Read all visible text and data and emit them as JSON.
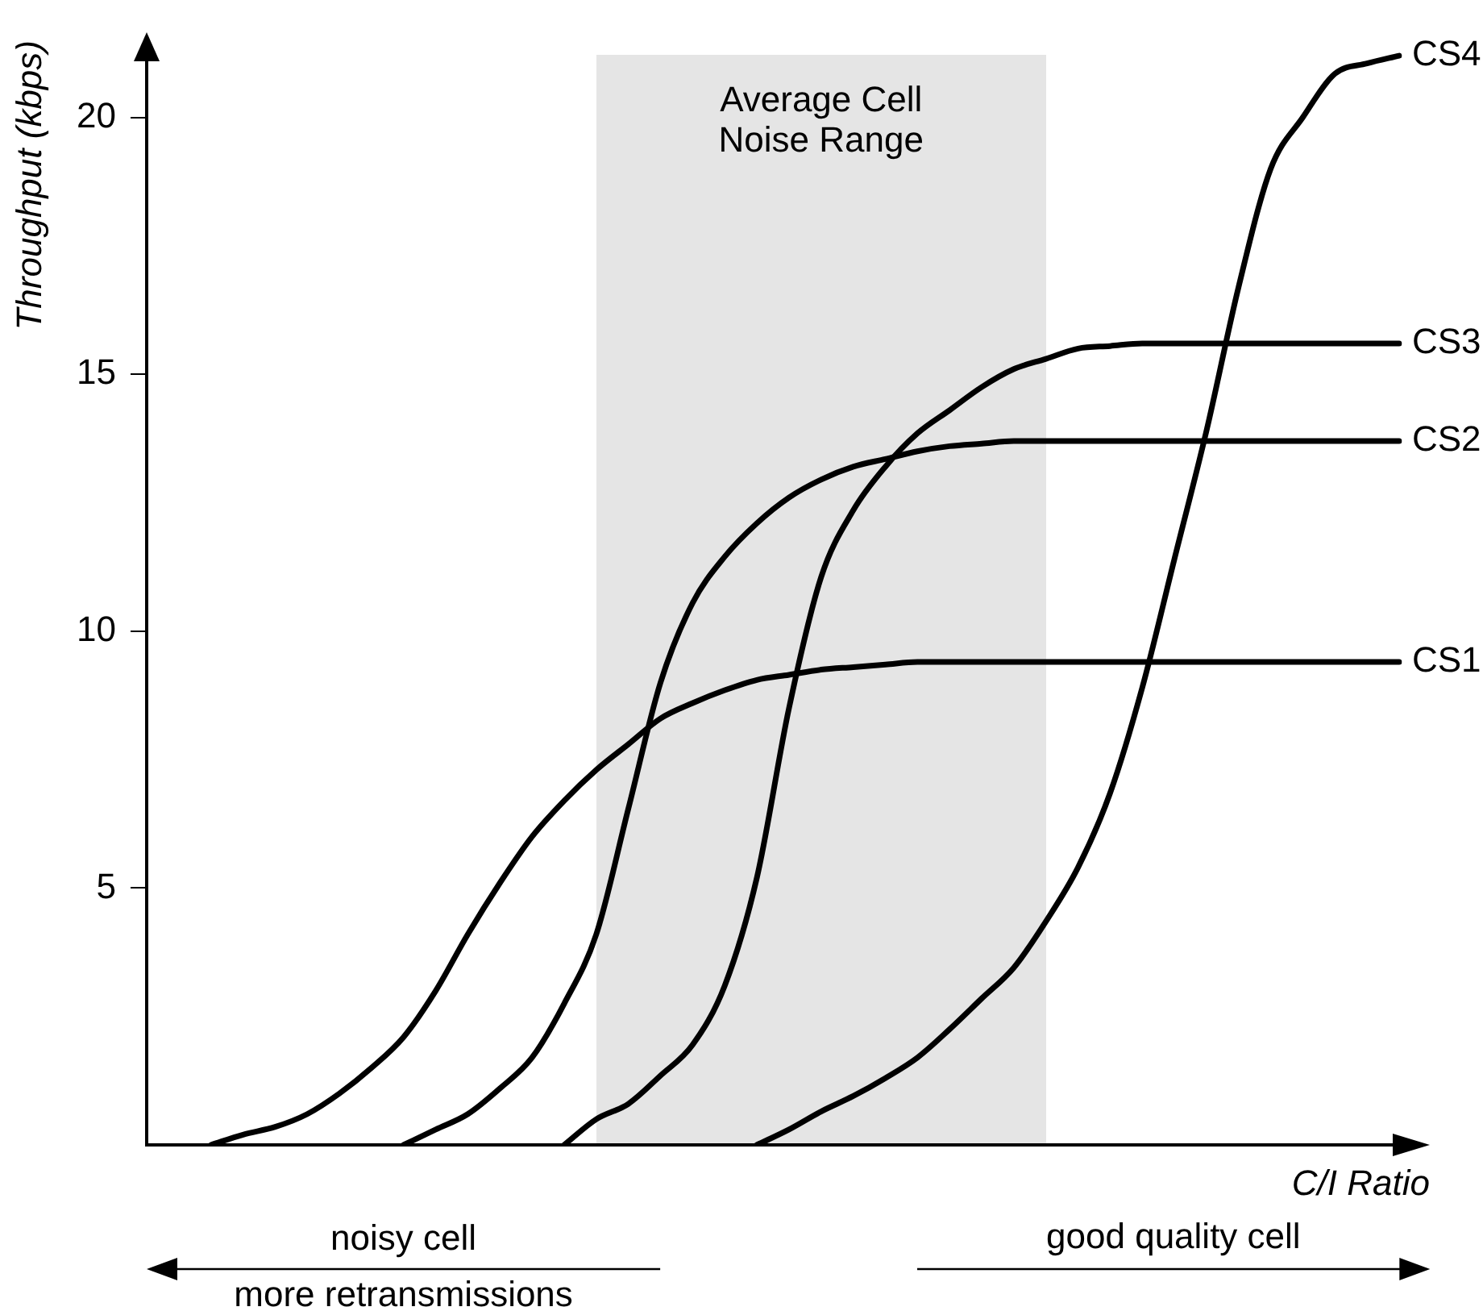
{
  "chart_data": {
    "type": "line",
    "ylabel": "Throughput (kbps)",
    "xlabel": "C/I Ratio",
    "categories": [
      null,
      null,
      null,
      null,
      null,
      null,
      null,
      null,
      null,
      null,
      null,
      null,
      null,
      null,
      null,
      null,
      null,
      null,
      null,
      null,
      null,
      null,
      null,
      null,
      null,
      null,
      null,
      null,
      null,
      null,
      null,
      null,
      null,
      null,
      null,
      null,
      null,
      null,
      null,
      null
    ],
    "series": [
      {
        "name": "CS1",
        "color": "#000000",
        "values": [
          null,
          null,
          0,
          0.2,
          0.35,
          0.6,
          1.0,
          1.5,
          2.1,
          3.0,
          4.1,
          5.1,
          6.0,
          6.7,
          7.3,
          7.8,
          8.3,
          8.6,
          8.85,
          9.05,
          9.15,
          9.25,
          9.3,
          9.35,
          9.4,
          9.4,
          9.4,
          9.4,
          9.4,
          9.4,
          9.4,
          9.4,
          9.4,
          9.4,
          9.4,
          9.4,
          9.4,
          9.4,
          9.4,
          9.4
        ]
      },
      {
        "name": "CS2",
        "color": "#000000",
        "values": [
          null,
          null,
          null,
          null,
          null,
          null,
          null,
          null,
          0,
          0.3,
          0.6,
          1.1,
          1.7,
          2.75,
          4.1,
          6.55,
          9.0,
          10.55,
          11.45,
          12.1,
          12.6,
          12.95,
          13.2,
          13.35,
          13.5,
          13.6,
          13.65,
          13.7,
          13.7,
          13.7,
          13.7,
          13.7,
          13.7,
          13.7,
          13.7,
          13.7,
          13.7,
          13.7,
          13.7,
          13.7
        ]
      },
      {
        "name": "CS3",
        "color": "#000000",
        "values": [
          null,
          null,
          null,
          null,
          null,
          null,
          null,
          null,
          null,
          null,
          null,
          null,
          null,
          0,
          0.5,
          0.8,
          1.35,
          1.95,
          3.1,
          5.2,
          8.5,
          11.05,
          12.35,
          13.2,
          13.85,
          14.3,
          14.75,
          15.1,
          15.3,
          15.5,
          15.55,
          15.6,
          15.6,
          15.6,
          15.6,
          15.6,
          15.6,
          15.6,
          15.6,
          15.6
        ]
      },
      {
        "name": "CS4",
        "color": "#000000",
        "values": [
          null,
          null,
          null,
          null,
          null,
          null,
          null,
          null,
          null,
          null,
          null,
          null,
          null,
          null,
          null,
          null,
          null,
          null,
          null,
          0,
          0.3,
          0.65,
          0.95,
          1.3,
          1.7,
          2.25,
          2.85,
          3.45,
          4.35,
          5.4,
          6.85,
          8.9,
          11.4,
          13.9,
          16.7,
          19.0,
          20.0,
          20.85,
          21.05,
          21.2
        ]
      }
    ],
    "ylim": [
      0,
      21.5
    ],
    "yticks": [
      5,
      10,
      15,
      20
    ],
    "annotations": [
      "Average Cell Noise Range",
      "noisy cell",
      "more retransmissions",
      "good quality cell"
    ],
    "grid": false,
    "legend": false,
    "marker": "none",
    "line_style": "solid",
    "tick_labels": "y"
  }
}
